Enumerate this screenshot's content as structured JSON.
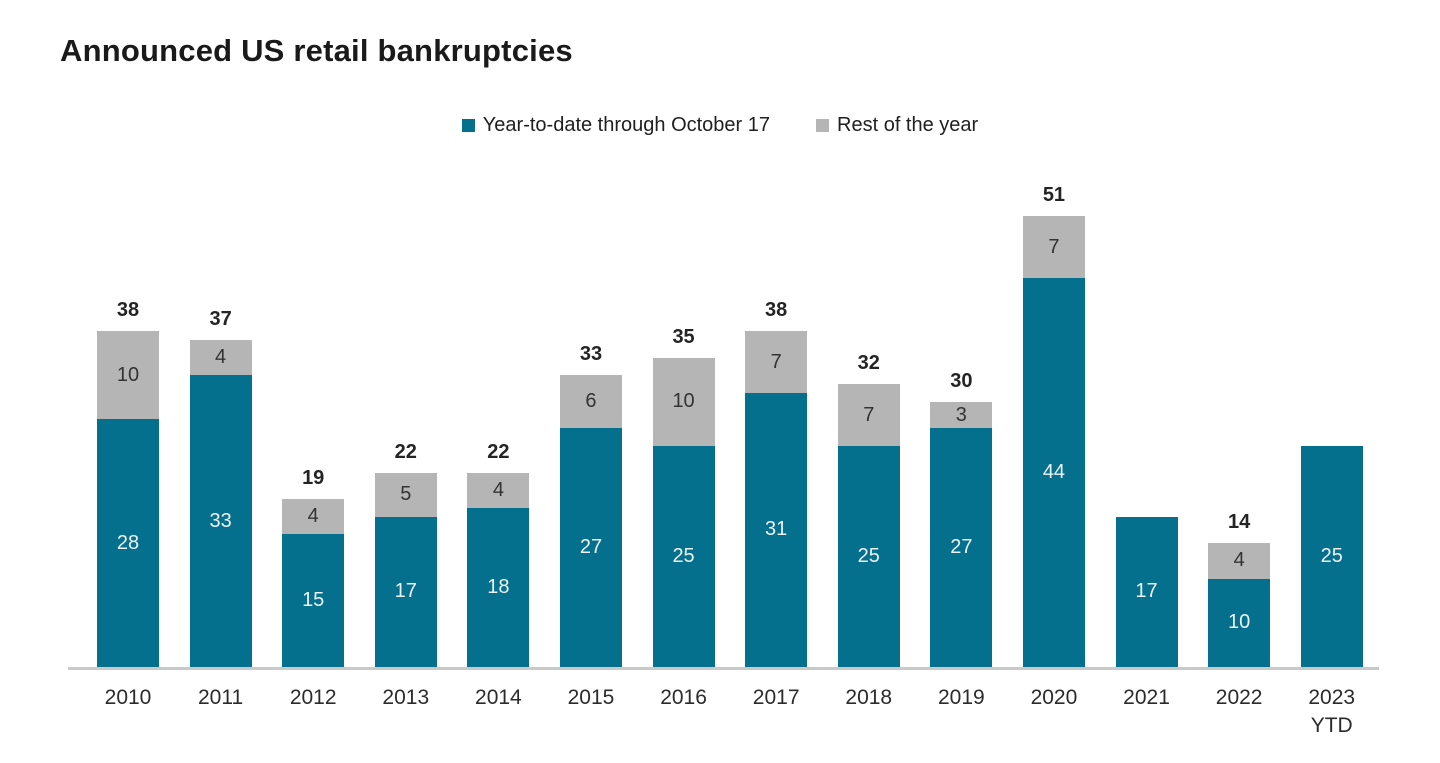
{
  "title": "Announced US retail bankruptcies",
  "legend": {
    "items": [
      {
        "label": "Year-to-date through October 17",
        "color": "#056f8e",
        "icon": "teal-square-swatch"
      },
      {
        "label": "Rest of the year",
        "color": "#b5b5b5",
        "icon": "gray-square-swatch"
      }
    ]
  },
  "colors": {
    "teal": "#056f8e",
    "gray": "#b5b5b5",
    "axis_line": "#c9c9c9",
    "title_text": "#1a1a1a",
    "total_label_text": "#242424",
    "segment_label_on_teal": "#edf2f4",
    "segment_label_on_gray": "#333333"
  },
  "chart_data": {
    "type": "bar",
    "stacked": true,
    "title": "Announced US retail bankruptcies",
    "xlabel": "",
    "ylabel": "",
    "ylim": [
      0,
      55
    ],
    "grid": false,
    "legend_position": "top-center",
    "categories": [
      "2010",
      "2011",
      "2012",
      "2013",
      "2014",
      "2015",
      "2016",
      "2017",
      "2018",
      "2019",
      "2020",
      "2021",
      "2022",
      "2023 YTD"
    ],
    "series": [
      {
        "name": "Year-to-date through October 17",
        "color": "#056f8e",
        "values": [
          28,
          33,
          15,
          17,
          18,
          27,
          25,
          31,
          25,
          27,
          44,
          17,
          10,
          25
        ]
      },
      {
        "name": "Rest of the year",
        "color": "#b5b5b5",
        "values": [
          10,
          4,
          4,
          5,
          4,
          6,
          10,
          7,
          7,
          3,
          7,
          0,
          4,
          0
        ]
      }
    ],
    "totals": [
      38,
      37,
      19,
      22,
      22,
      33,
      35,
      38,
      32,
      30,
      51,
      null,
      14,
      null
    ]
  }
}
